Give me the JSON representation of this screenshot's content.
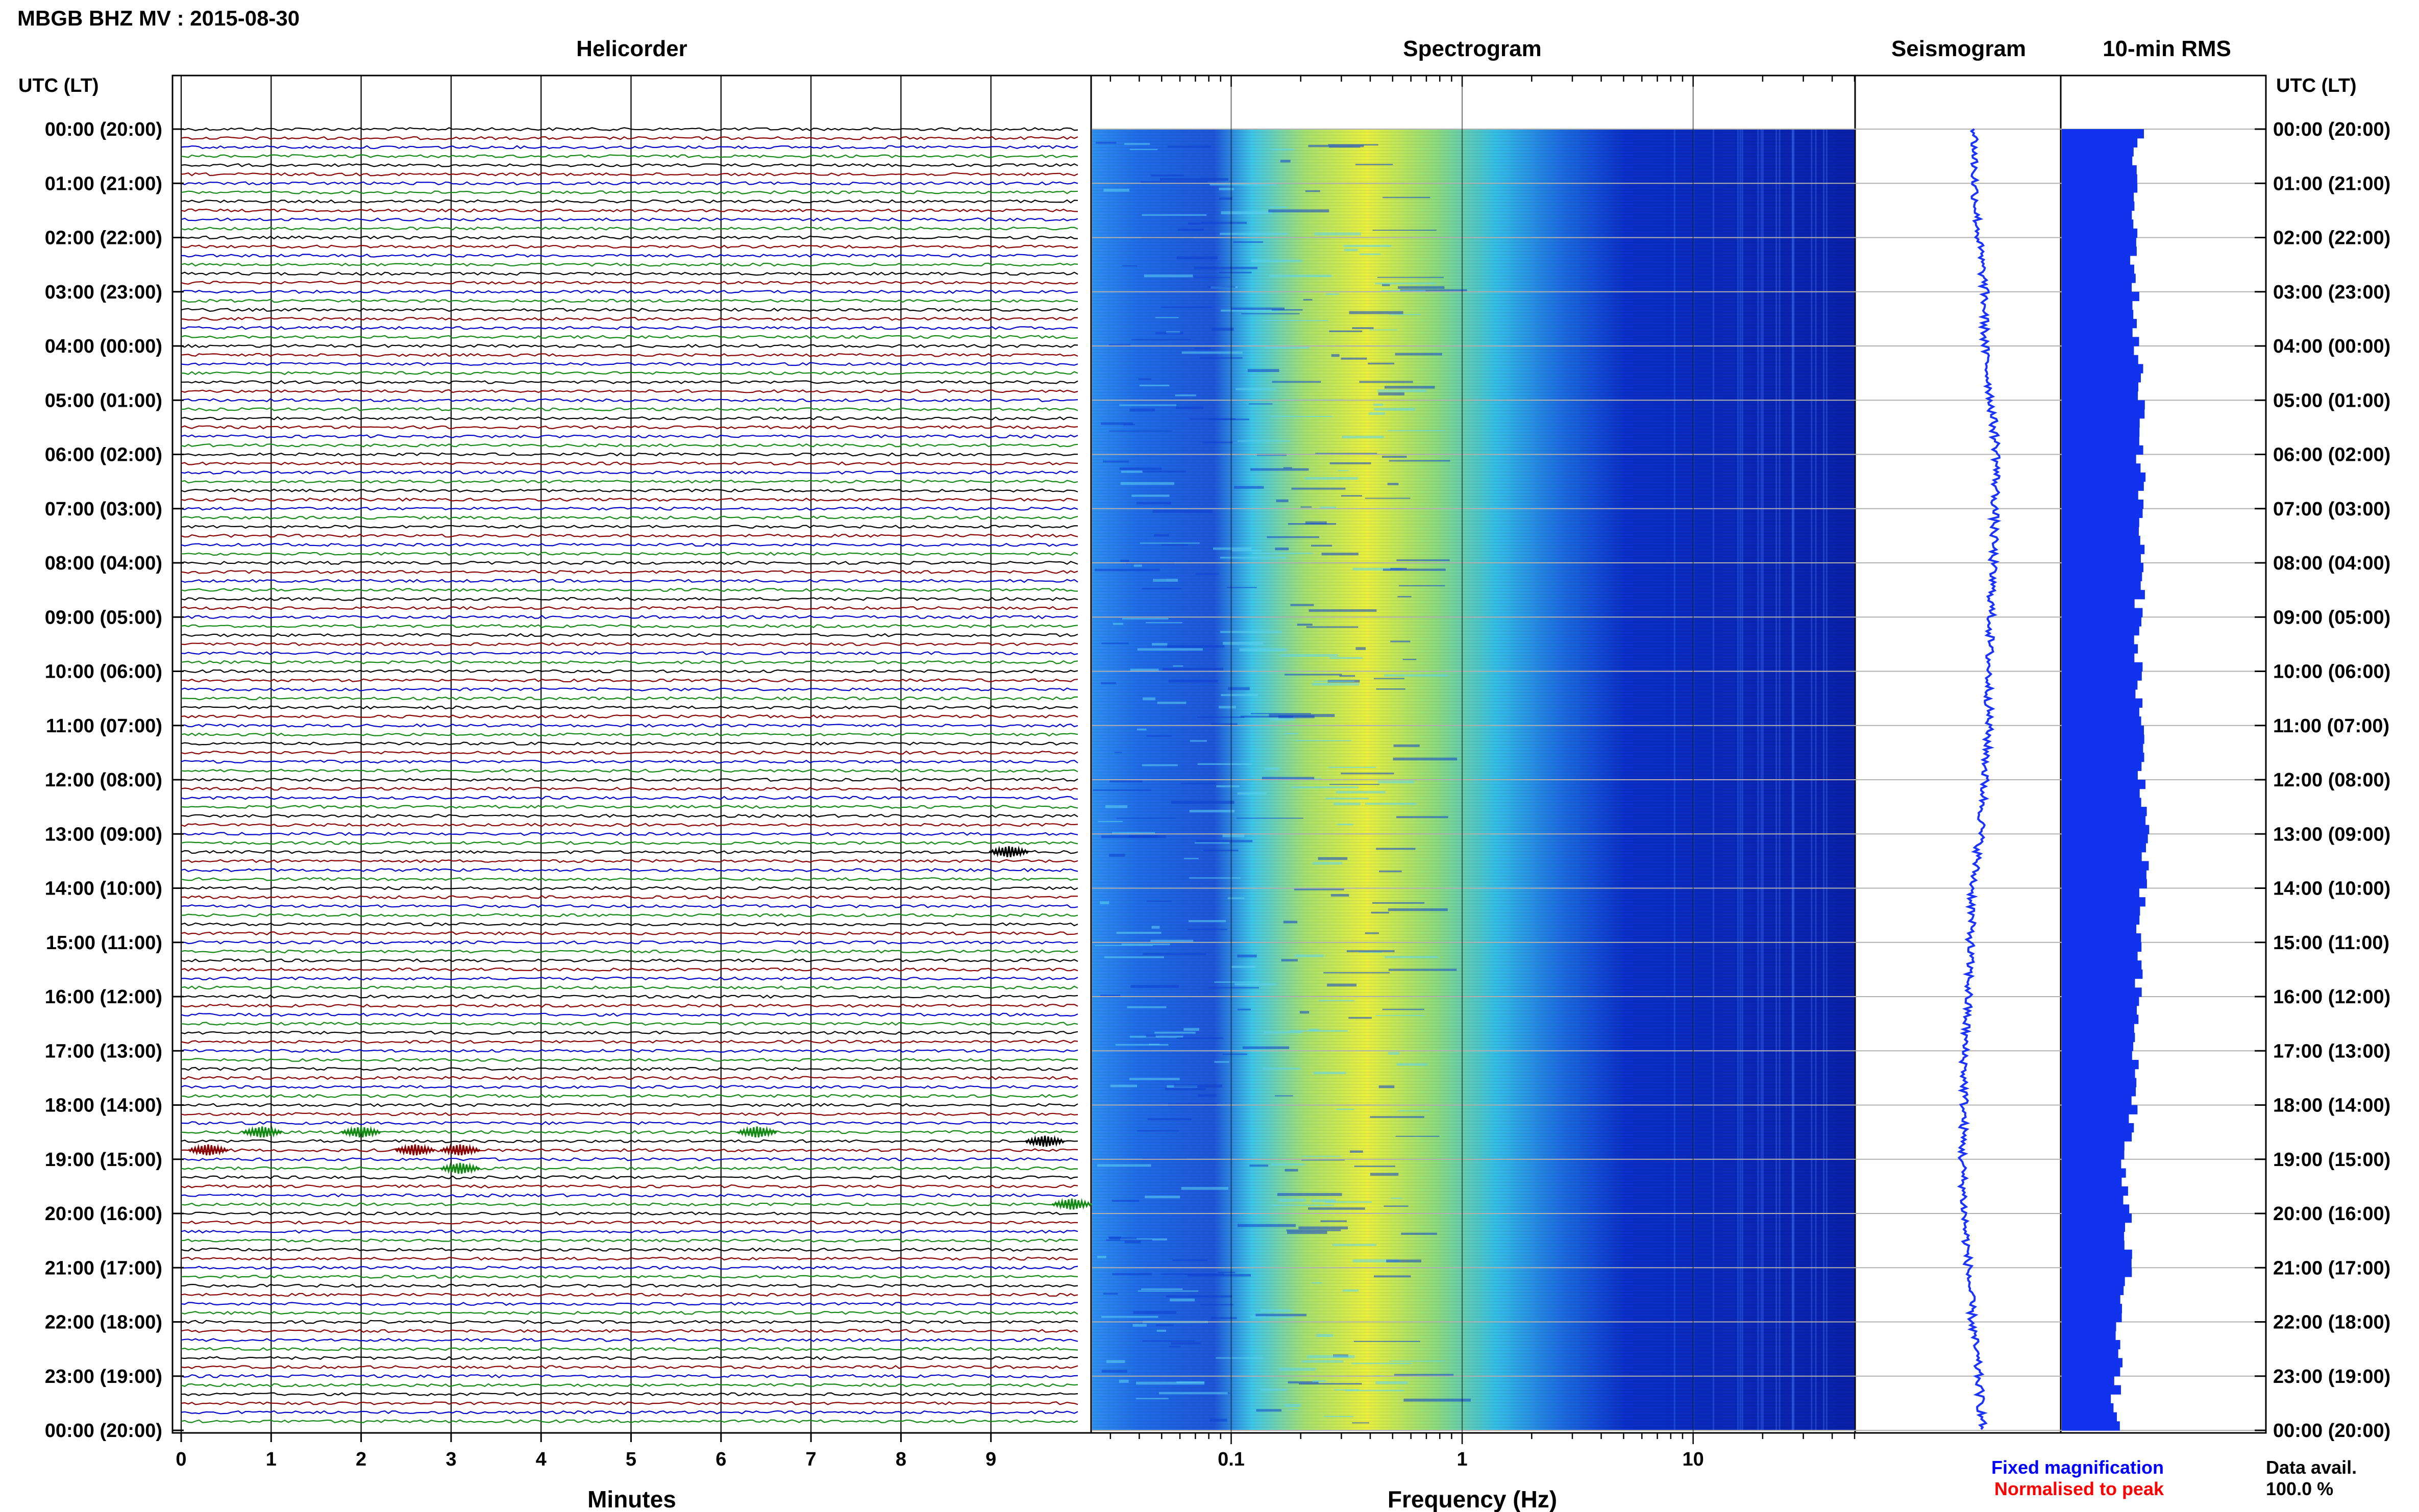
{
  "header": {
    "title": "MBGB BHZ MV : 2015-08-30"
  },
  "colors": {
    "trace_cycle": [
      "#000000",
      "#8b0000",
      "#0000cc",
      "#138a13"
    ],
    "rms_fill": "#1133ee",
    "seismogram": "#1a33ff",
    "fixed_magnification": "#0000ff",
    "normalised": "#ff0000"
  },
  "chart_data": [
    {
      "type": "line",
      "panel": "helicorder",
      "title": "Helicorder",
      "xlabel": "Minutes",
      "xlim": [
        0,
        10
      ],
      "x_ticks": [
        "0",
        "1",
        "2",
        "3",
        "4",
        "5",
        "6",
        "7",
        "8",
        "9"
      ],
      "rows_per_hour": 6,
      "hours": 24,
      "y_axis_title": "UTC (LT)",
      "y_ticks": [
        "00:00 (20:00)",
        "01:00 (21:00)",
        "02:00 (22:00)",
        "03:00 (23:00)",
        "04:00 (00:00)",
        "05:00 (01:00)",
        "06:00 (02:00)",
        "07:00 (03:00)",
        "08:00 (04:00)",
        "09:00 (05:00)",
        "10:00 (06:00)",
        "11:00 (07:00)",
        "12:00 (08:00)",
        "13:00 (09:00)",
        "14:00 (10:00)",
        "15:00 (11:00)",
        "16:00 (12:00)",
        "17:00 (13:00)",
        "18:00 (14:00)",
        "19:00 (15:00)",
        "20:00 (16:00)",
        "21:00 (17:00)",
        "22:00 (18:00)",
        "23:00 (19:00)",
        "00:00 (20:00)"
      ],
      "events": [
        {
          "hour": 18.5,
          "minute": 0.9
        },
        {
          "hour": 18.5,
          "minute": 2.0
        },
        {
          "hour": 18.5,
          "minute": 6.4
        },
        {
          "hour": 18.83,
          "minute": 0.3
        },
        {
          "hour": 18.83,
          "minute": 2.6
        },
        {
          "hour": 18.83,
          "minute": 3.1
        },
        {
          "hour": 19.17,
          "minute": 3.1
        },
        {
          "hour": 18.67,
          "minute": 9.6
        },
        {
          "hour": 13.33,
          "minute": 9.2
        },
        {
          "hour": 19.83,
          "minute": 9.9
        }
      ]
    },
    {
      "type": "heatmap",
      "panel": "spectrogram",
      "title": "Spectrogram",
      "xlabel": "Frequency (Hz)",
      "x_scale": "log",
      "xlim": [
        0.025,
        50
      ],
      "x_ticks": [
        "0.1",
        "1",
        "10"
      ],
      "band_power_profile": [
        {
          "f": 0.03,
          "level": 0.4
        },
        {
          "f": 0.1,
          "level": 0.32
        },
        {
          "f": 0.2,
          "level": 0.62
        },
        {
          "f": 0.35,
          "level": 0.85
        },
        {
          "f": 0.6,
          "level": 0.62
        },
        {
          "f": 1.0,
          "level": 0.42
        },
        {
          "f": 2.0,
          "level": 0.22
        },
        {
          "f": 5.0,
          "level": 0.1
        },
        {
          "f": 50.0,
          "level": 0.05
        }
      ]
    },
    {
      "type": "line",
      "panel": "seismogram",
      "title": "Seismogram",
      "axis": "vertical",
      "x_offset": [
        0.58,
        0.58,
        0.6,
        0.63,
        0.63,
        0.66,
        0.69,
        0.68,
        0.67,
        0.66,
        0.65,
        0.65,
        0.63,
        0.61,
        0.57,
        0.56,
        0.55,
        0.53,
        0.53,
        0.52,
        0.53,
        0.55,
        0.57,
        0.6,
        0.62
      ]
    },
    {
      "type": "bar",
      "panel": "rms",
      "title": "10-min RMS",
      "orientation": "horizontal",
      "xlim": [
        0,
        1
      ],
      "values_hourly": [
        0.38,
        0.35,
        0.36,
        0.36,
        0.37,
        0.4,
        0.39,
        0.39,
        0.39,
        0.38,
        0.38,
        0.39,
        0.4,
        0.42,
        0.39,
        0.38,
        0.37,
        0.36,
        0.36,
        0.3,
        0.32,
        0.33,
        0.29,
        0.27,
        0.26
      ]
    }
  ],
  "footer": {
    "legend_fixed": "Fixed magnification",
    "legend_normalised": "Normalised to peak",
    "data_avail_label": "Data avail.",
    "data_avail_value": "100.0 %"
  }
}
